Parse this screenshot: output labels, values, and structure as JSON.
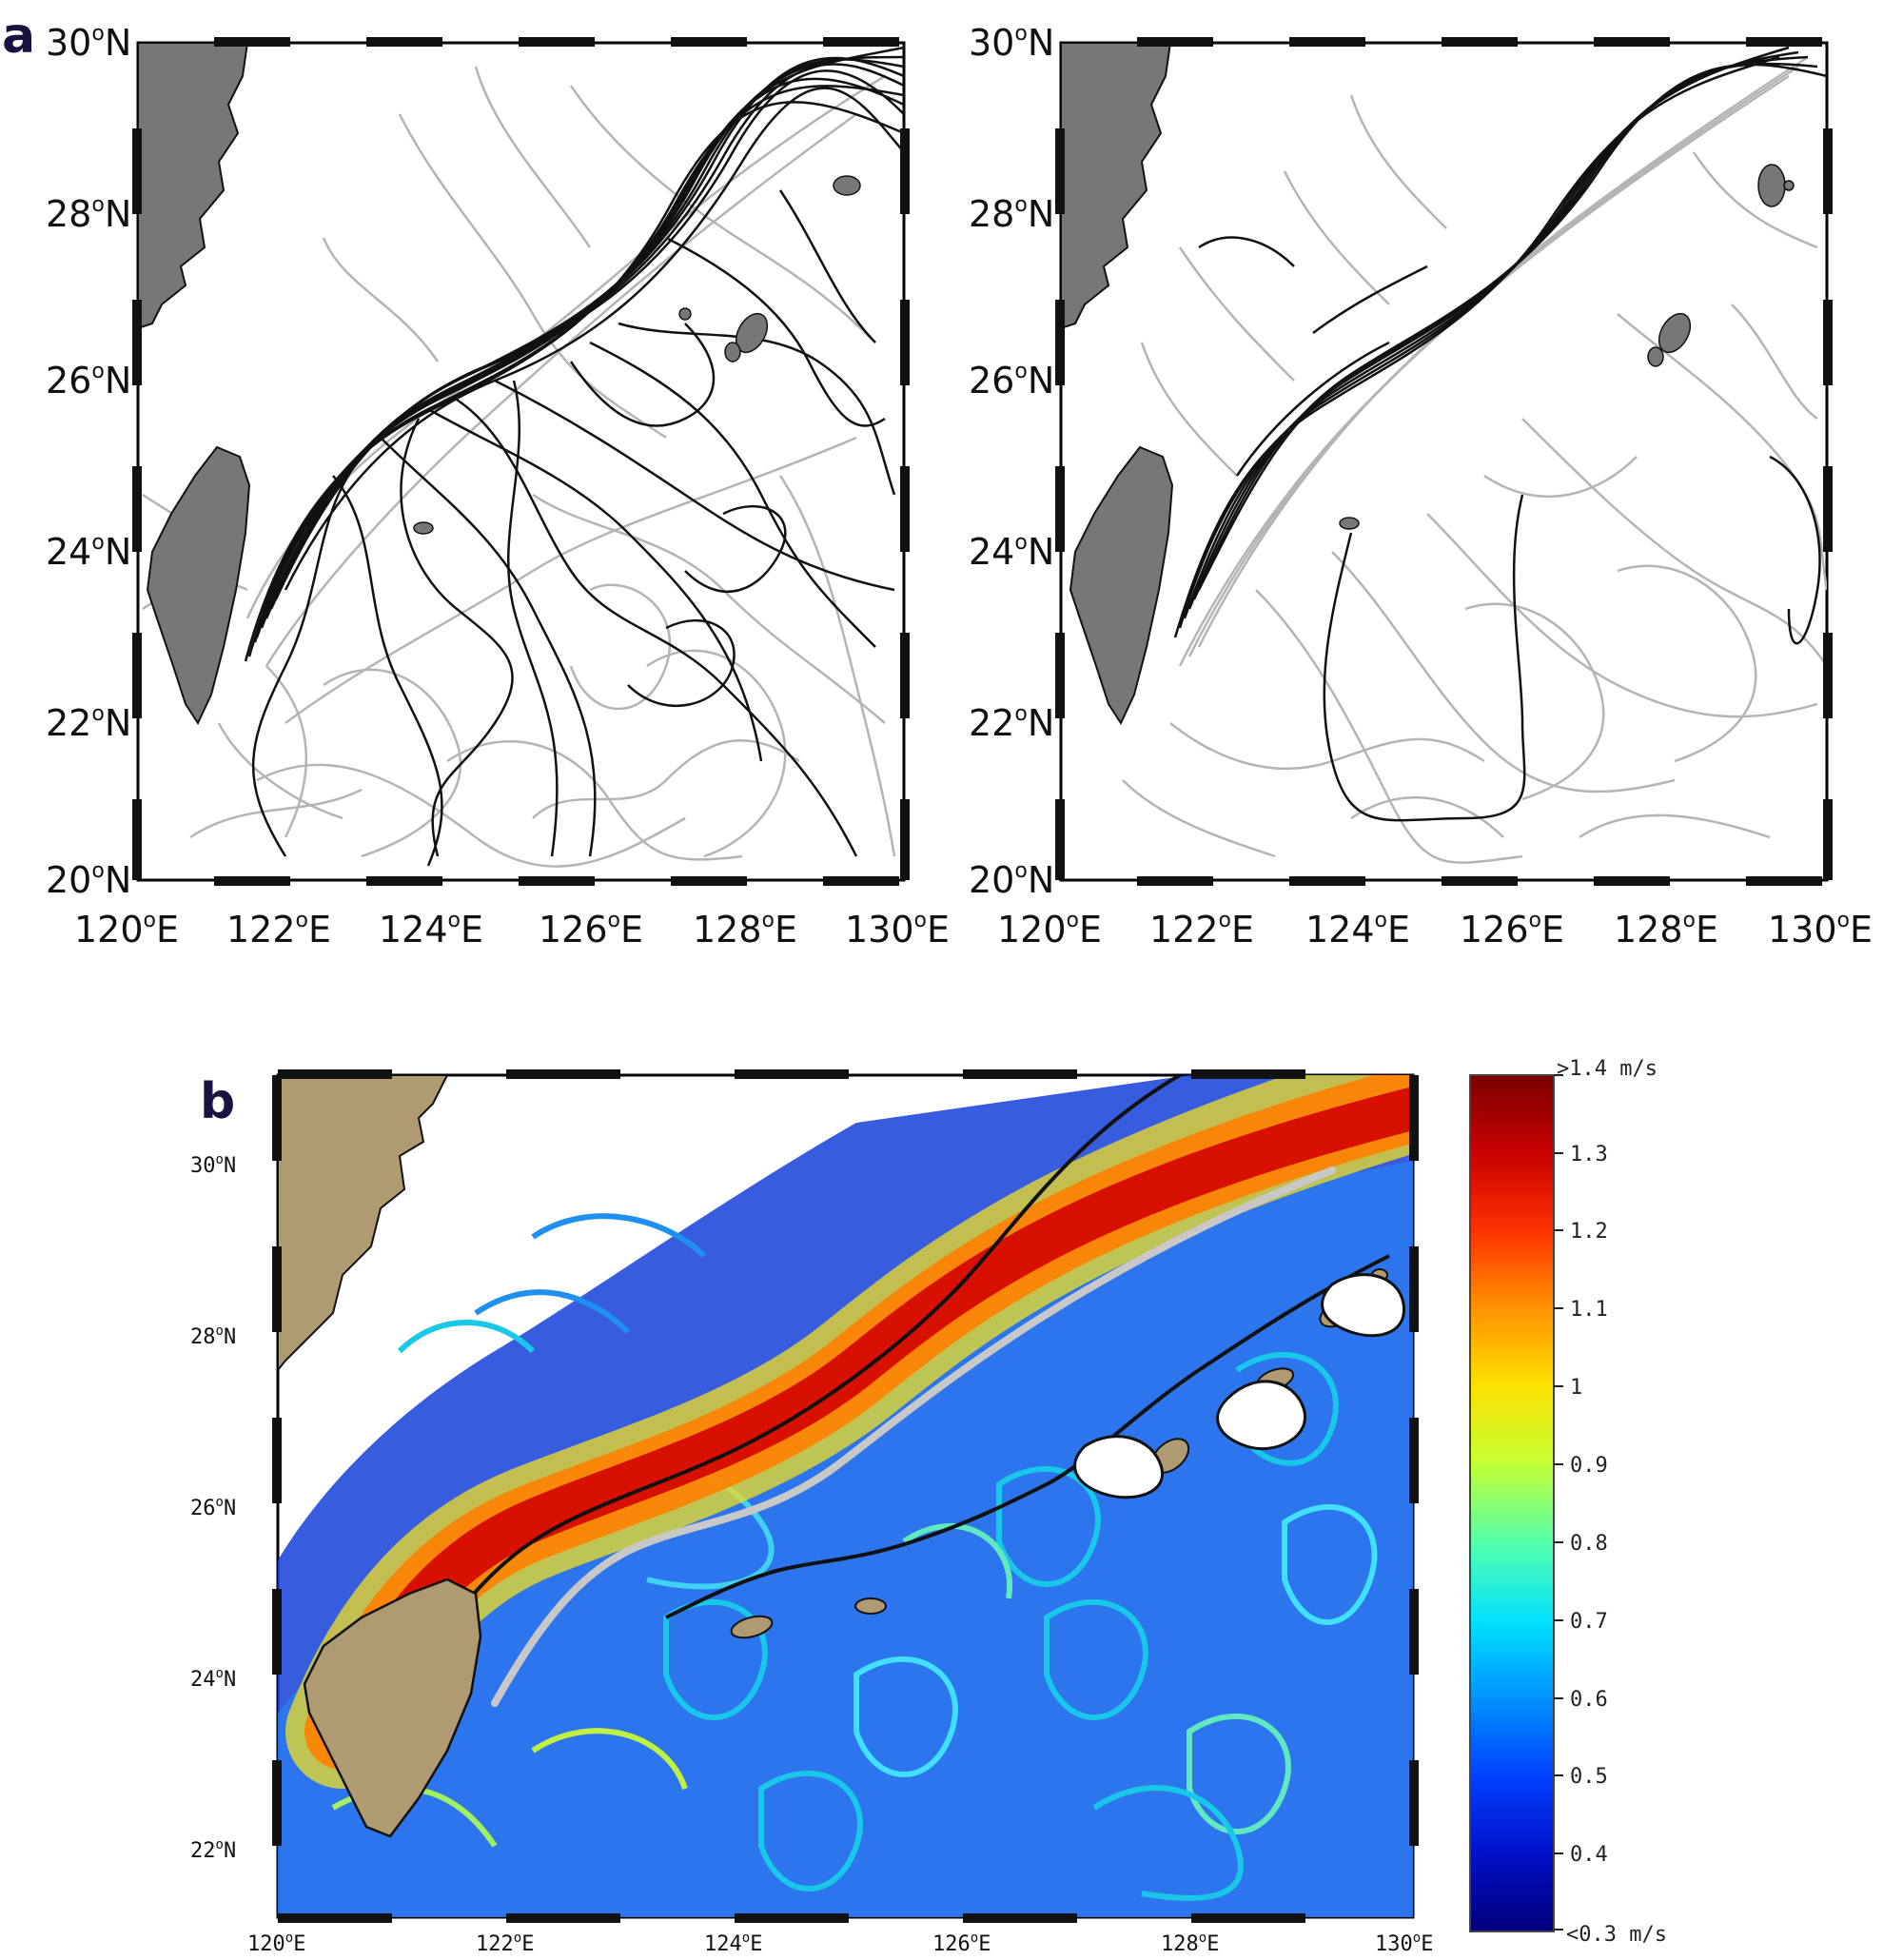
{
  "panel_a": {
    "letter": "a",
    "x_ticks": [
      "120",
      "122",
      "124",
      "126",
      "128",
      "130"
    ],
    "y_ticks": [
      "20",
      "22",
      "24",
      "26",
      "28",
      "30"
    ],
    "x_suffix": "E",
    "y_suffix": "N",
    "deg": "o"
  },
  "panel_b": {
    "letter": "b",
    "x_ticks": [
      "120",
      "122",
      "124",
      "126",
      "128",
      "130"
    ],
    "y_ticks": [
      "22",
      "24",
      "26",
      "28",
      "30"
    ],
    "x_suffix": "E",
    "y_suffix": "N",
    "deg": "o"
  },
  "colorbar": {
    "labels": [
      ">1.4 m/s",
      "1.3",
      "1.2",
      "1.1",
      "1",
      "0.9",
      "0.8",
      "0.7",
      "0.6",
      "0.5",
      "0.4",
      "<0.3 m/s"
    ],
    "colors": [
      "#7a0000",
      "#c80000",
      "#ff3000",
      "#ff9000",
      "#ffe000",
      "#c8ff30",
      "#50ffb0",
      "#00e0ff",
      "#0090ff",
      "#0040ff",
      "#0010c8",
      "#00007a"
    ]
  },
  "colors": {
    "land_a": "#777777",
    "land_b": "#b09a72",
    "drifter_black": "#111111",
    "drifter_grey": "#b4b4b4",
    "kuroshio_axis": "#c8c8c8"
  }
}
